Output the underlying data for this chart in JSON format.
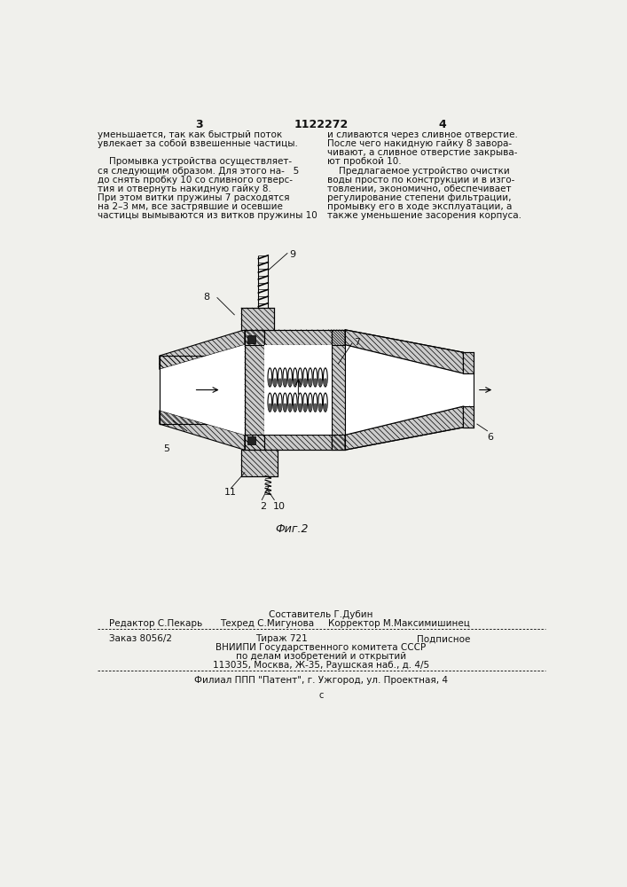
{
  "bg_color": "#f0f0ec",
  "page_number_left": "3",
  "patent_number": "1122272",
  "page_number_right": "4",
  "col1_lines": [
    "уменьшается, так как быстрый поток",
    "увлекает за собой взвешенные частицы.",
    "",
    "    Промывка устройства осуществляет-",
    "ся следующим образом. Для этого на-   5",
    "до снять пробку 10 со сливного отверс-",
    "тия и отвернуть накидную гайку 8.",
    "При этом витки пружины 7 расходятся",
    "на 2–3 мм, все застрявшие и осевшие",
    "частицы вымываются из витков пружины 10"
  ],
  "col2_lines": [
    "и сливаются через сливное отверстие.",
    "После чего накидную гайку 8 завора-",
    "чивают, а сливное отверстие закрыва-",
    "ют пробкой 10.",
    "    Предлагаемое устройство очистки",
    "воды просто по конструкции и в изго-",
    "товлении, экономично, обеспечивает",
    "регулирование степени фильтрации,",
    "промывку его в ходе эксплуатации, а",
    "также уменьшение засорения корпуса."
  ],
  "fig_caption": "Фиг.2",
  "editor_line": "Редактор С.Пекарь",
  "composer_line": "Составитель Г.Дубин",
  "techred_line": "Техред С.Мигунова",
  "corrector_line": "Корректор М.Максимишинец",
  "order_line": "Заказ 8056/2",
  "tiraz_line": "Тираж 721",
  "subscription_line": "Подписное",
  "vnipi_line": "ВНИИПИ Государственного комитета СССР",
  "affairs_line": "по делам изобретений и открытий",
  "address_line": "113035, Москва, Ж-35, Раушская наб., д. 4/5",
  "filial_line": "Филиал ППП \"Патент\", г. Ужгород, ул. Проектная, 4",
  "c_mark": "с"
}
